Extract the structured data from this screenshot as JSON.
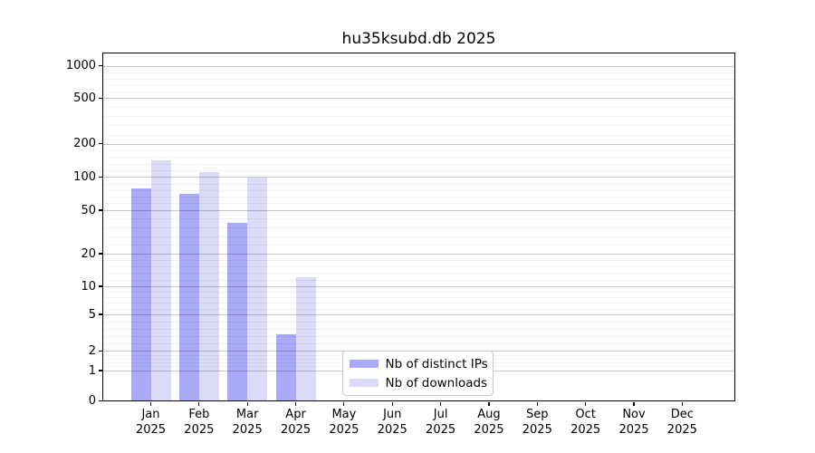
{
  "chart_data": {
    "type": "bar",
    "title": "hu35ksubd.db 2025",
    "categories": [
      "Jan",
      "Feb",
      "Mar",
      "Apr",
      "May",
      "Jun",
      "Jul",
      "Aug",
      "Sep",
      "Oct",
      "Nov",
      "Dec"
    ],
    "year_label": "2025",
    "series": [
      {
        "name": "Nb of distinct IPs",
        "color": "#a9a9f7",
        "values": [
          79,
          70,
          38,
          3,
          0,
          0,
          0,
          0,
          0,
          0,
          0,
          0
        ]
      },
      {
        "name": "Nb of downloads",
        "color": "#dadaf9",
        "values": [
          140,
          110,
          98,
          12,
          0,
          0,
          0,
          0,
          0,
          0,
          0,
          0
        ]
      }
    ],
    "yticks": [
      0,
      1,
      2,
      5,
      10,
      20,
      50,
      100,
      200,
      500,
      1000
    ],
    "yscale": "symlog",
    "ylim": [
      0,
      1200
    ],
    "grid": "horizontal-major-and-minor",
    "legend": {
      "position": "lower-center",
      "entries": [
        "Nb of distinct IPs",
        "Nb of downloads"
      ]
    }
  }
}
